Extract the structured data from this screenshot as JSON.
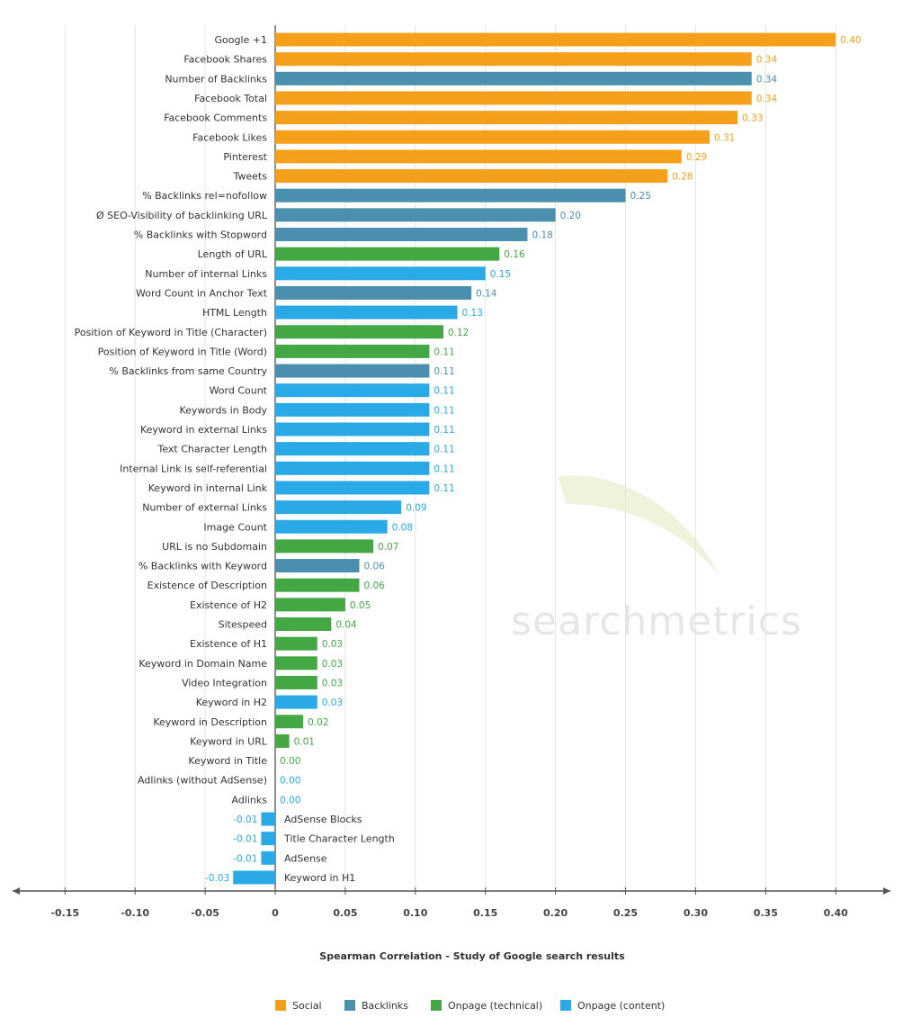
{
  "chart_data": {
    "type": "bar",
    "orientation": "horizontal",
    "xlabel": "Spearman Correlation - Study of Google search results",
    "xlim": [
      -0.18,
      0.43
    ],
    "xticks": [
      "-0.15",
      "-0.10",
      "-0.05",
      "0",
      "0.05",
      "0.10",
      "0.15",
      "0.20",
      "0.25",
      "0.30",
      "0.35",
      "0.40"
    ],
    "xtick_values": [
      -0.15,
      -0.1,
      -0.05,
      0,
      0.05,
      0.1,
      0.15,
      0.2,
      0.25,
      0.3,
      0.35,
      0.4
    ],
    "grid": "vertical",
    "legend_position": "bottom",
    "watermark": "searchmetrics",
    "series_colors": {
      "Social": "#f5a01a",
      "Backlinks": "#4a8fad",
      "Onpage (technical)": "#43a843",
      "Onpage (content)": "#29a9e6"
    },
    "legend": [
      "Social",
      "Backlinks",
      "Onpage (technical)",
      "Onpage (content)"
    ],
    "bars": [
      {
        "label": "Google +1",
        "value": 0.4,
        "value_label": "0.40",
        "series": "Social"
      },
      {
        "label": "Facebook Shares",
        "value": 0.34,
        "value_label": "0.34",
        "series": "Social"
      },
      {
        "label": "Number of Backlinks",
        "value": 0.34,
        "value_label": "0.34",
        "series": "Backlinks"
      },
      {
        "label": "Facebook Total",
        "value": 0.34,
        "value_label": "0.34",
        "series": "Social"
      },
      {
        "label": "Facebook Comments",
        "value": 0.33,
        "value_label": "0.33",
        "series": "Social"
      },
      {
        "label": "Facebook Likes",
        "value": 0.31,
        "value_label": "0.31",
        "series": "Social"
      },
      {
        "label": "Pinterest",
        "value": 0.29,
        "value_label": "0.29",
        "series": "Social"
      },
      {
        "label": "Tweets",
        "value": 0.28,
        "value_label": "0.28",
        "series": "Social"
      },
      {
        "label": "% Backlinks rel=nofollow",
        "value": 0.25,
        "value_label": "0.25",
        "series": "Backlinks"
      },
      {
        "label": "Ø SEO-Visibility of backlinking URL",
        "value": 0.2,
        "value_label": "0.20",
        "series": "Backlinks"
      },
      {
        "label": "% Backlinks with Stopword",
        "value": 0.18,
        "value_label": "0.18",
        "series": "Backlinks"
      },
      {
        "label": "Length of URL",
        "value": 0.16,
        "value_label": "0.16",
        "series": "Onpage (technical)"
      },
      {
        "label": "Number of internal Links",
        "value": 0.15,
        "value_label": "0.15",
        "series": "Onpage (content)"
      },
      {
        "label": "Word Count in Anchor Text",
        "value": 0.14,
        "value_label": "0.14",
        "series": "Backlinks"
      },
      {
        "label": "HTML Length",
        "value": 0.13,
        "value_label": "0.13",
        "series": "Onpage (content)"
      },
      {
        "label": "Position of Keyword in Title (Character)",
        "value": 0.12,
        "value_label": "0.12",
        "series": "Onpage (technical)"
      },
      {
        "label": "Position of Keyword in Title (Word)",
        "value": 0.11,
        "value_label": "0.11",
        "series": "Onpage (technical)"
      },
      {
        "label": "% Backlinks from same Country",
        "value": 0.11,
        "value_label": "0.11",
        "series": "Backlinks"
      },
      {
        "label": "Word Count",
        "value": 0.11,
        "value_label": "0.11",
        "series": "Onpage (content)"
      },
      {
        "label": "Keywords in Body",
        "value": 0.11,
        "value_label": "0.11",
        "series": "Onpage (content)"
      },
      {
        "label": "Keyword in external Links",
        "value": 0.11,
        "value_label": "0.11",
        "series": "Onpage (content)"
      },
      {
        "label": "Text Character Length",
        "value": 0.11,
        "value_label": "0.11",
        "series": "Onpage (content)"
      },
      {
        "label": "Internal Link is self-referential",
        "value": 0.11,
        "value_label": "0.11",
        "series": "Onpage (content)"
      },
      {
        "label": "Keyword in internal Link",
        "value": 0.11,
        "value_label": "0.11",
        "series": "Onpage (content)"
      },
      {
        "label": "Number of external Links",
        "value": 0.09,
        "value_label": "0.09",
        "series": "Onpage (content)"
      },
      {
        "label": "Image Count",
        "value": 0.08,
        "value_label": "0.08",
        "series": "Onpage (content)"
      },
      {
        "label": "URL is no Subdomain",
        "value": 0.07,
        "value_label": "0.07",
        "series": "Onpage (technical)"
      },
      {
        "label": "% Backlinks with Keyword",
        "value": 0.06,
        "value_label": "0.06",
        "series": "Backlinks"
      },
      {
        "label": "Existence of Description",
        "value": 0.06,
        "value_label": "0.06",
        "series": "Onpage (technical)"
      },
      {
        "label": "Existence of H2",
        "value": 0.05,
        "value_label": "0.05",
        "series": "Onpage (technical)"
      },
      {
        "label": "Sitespeed",
        "value": 0.04,
        "value_label": "0.04",
        "series": "Onpage (technical)"
      },
      {
        "label": "Existence of H1",
        "value": 0.03,
        "value_label": "0.03",
        "series": "Onpage (technical)"
      },
      {
        "label": "Keyword in Domain Name",
        "value": 0.03,
        "value_label": "0.03",
        "series": "Onpage (technical)"
      },
      {
        "label": "Video Integration",
        "value": 0.03,
        "value_label": "0.03",
        "series": "Onpage (technical)"
      },
      {
        "label": "Keyword in H2",
        "value": 0.03,
        "value_label": "0.03",
        "series": "Onpage (content)"
      },
      {
        "label": "Keyword in Description",
        "value": 0.02,
        "value_label": "0.02",
        "series": "Onpage (technical)"
      },
      {
        "label": "Keyword in URL",
        "value": 0.01,
        "value_label": "0.01",
        "series": "Onpage (technical)"
      },
      {
        "label": "Keyword in Title",
        "value": 0.0,
        "value_label": "0.00",
        "series": "Onpage (technical)"
      },
      {
        "label": "Adlinks (without AdSense)",
        "value": 0.0,
        "value_label": "0.00",
        "series": "Onpage (content)"
      },
      {
        "label": "Adlinks",
        "value": 0.0,
        "value_label": "0.00",
        "series": "Onpage (content)"
      },
      {
        "label": "AdSense Blocks",
        "value": -0.01,
        "value_label": "-0.01",
        "series": "Onpage (content)"
      },
      {
        "label": "Title Character Length",
        "value": -0.01,
        "value_label": "-0.01",
        "series": "Onpage (content)"
      },
      {
        "label": "AdSense",
        "value": -0.01,
        "value_label": "-0.01",
        "series": "Onpage (content)"
      },
      {
        "label": "Keyword in H1",
        "value": -0.03,
        "value_label": "-0.03",
        "series": "Onpage (content)"
      }
    ]
  }
}
